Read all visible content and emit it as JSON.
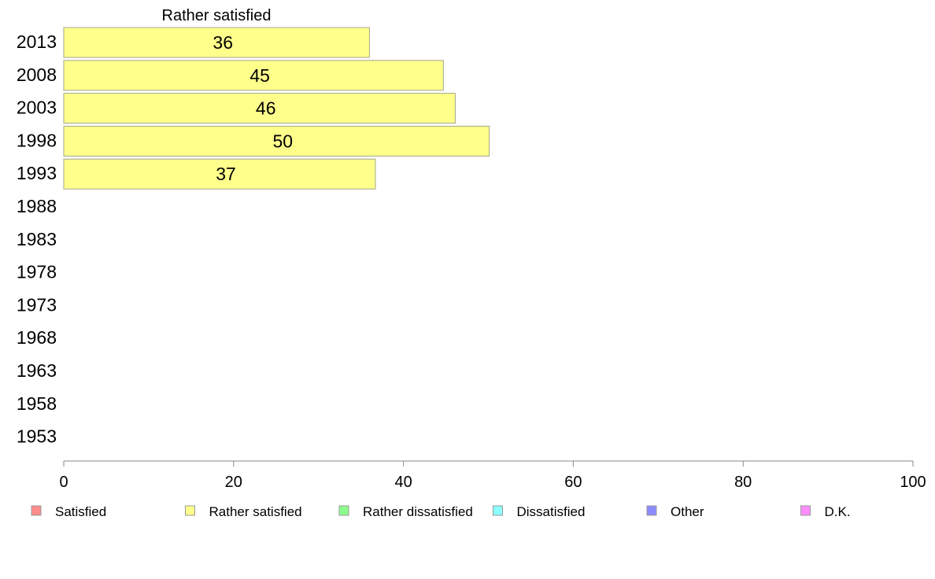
{
  "chart_data": {
    "type": "bar",
    "orientation": "horizontal",
    "title": "Rather satisfied",
    "categories": [
      "2013",
      "2008",
      "2003",
      "1998",
      "1993",
      "1988",
      "1983",
      "1978",
      "1973",
      "1968",
      "1963",
      "1958",
      "1953"
    ],
    "series": [
      {
        "name": "Rather satisfied",
        "values": [
          36,
          44.7,
          46.1,
          50.1,
          36.7,
          null,
          null,
          null,
          null,
          null,
          null,
          null,
          null
        ],
        "labels": [
          "36",
          "45",
          "46",
          "50",
          "37",
          "",
          "",
          "",
          "",
          "",
          "",
          "",
          ""
        ]
      }
    ],
    "xlim": [
      0,
      100
    ],
    "xticks": [
      "0",
      "20",
      "40",
      "60",
      "80",
      "100"
    ],
    "grid": false,
    "legend_position": "bottom",
    "legend": [
      {
        "label": "Satisfied",
        "color": "#ff8c8c"
      },
      {
        "label": "Rather satisfied",
        "color": "#ffff8c"
      },
      {
        "label": "Rather dissatisfied",
        "color": "#8cff8c"
      },
      {
        "label": "Dissatisfied",
        "color": "#8cffff"
      },
      {
        "label": "Other",
        "color": "#8c8cff"
      },
      {
        "label": "D.K.",
        "color": "#ff8cff"
      }
    ],
    "bar_color": "#ffff8c"
  }
}
